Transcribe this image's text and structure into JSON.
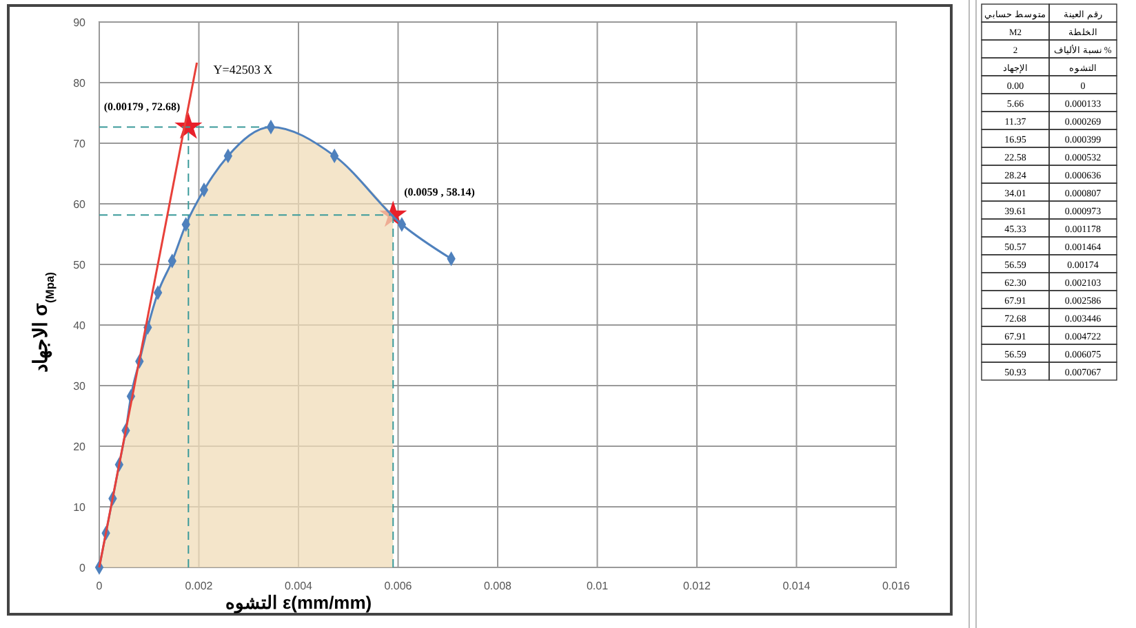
{
  "chart_data": {
    "type": "line",
    "xlabel": "التشوه ε(mm/mm)",
    "ylabel": "الاجهاد σ$_{(Mpa)}$",
    "xlim": [
      0,
      0.016
    ],
    "xticks": [
      0,
      0.002,
      0.004,
      0.006,
      0.008,
      0.01,
      0.012,
      0.014,
      0.016
    ],
    "ylim": [
      0,
      90
    ],
    "yticks": [
      0,
      10,
      20,
      30,
      40,
      50,
      60,
      70,
      80,
      90
    ],
    "grid": true,
    "legend": false,
    "annotations": [
      "رقم العينة",
      "متوسط حسابي",
      "الخلطة",
      "M2",
      "نسبة الألياف %",
      "2",
      "التشوه",
      "الإجهاد",
      "0",
      "0.00",
      "0.000133",
      "5.66",
      "0.000269",
      "11.37",
      "0.000399",
      "16.95",
      "0.000532",
      "22.58",
      "0.000636",
      "28.24",
      "0.000807",
      "34.01",
      "0.000973",
      "39.61",
      "0.001178",
      "45.33",
      "0.001464",
      "50.57",
      "0.00174",
      "56.59",
      "0.002103",
      "62.30",
      "0.002586",
      "67.91",
      "0.003446",
      "72.68",
      "0.004722",
      "67.91",
      "0.006075",
      "56.59",
      "0.007067",
      "50.93"
    ],
    "series": [
      {
        "type": "area",
        "color": "#f0dcb8",
        "x": [
          0,
          0.000133,
          0.000269,
          0.000399,
          0.000532,
          0.000636,
          0.000807,
          0.000973,
          0.001178,
          0.001464,
          0.00174,
          0.002103,
          0.002586,
          0.003446,
          0.004722,
          0.0059
        ],
        "values": [
          0,
          5.66,
          11.37,
          16.95,
          22.58,
          28.24,
          34.01,
          39.61,
          45.33,
          50.57,
          56.59,
          62.3,
          67.91,
          72.68,
          67.91,
          58.14
        ],
        "marker": "none"
      },
      {
        "type": "line",
        "color": "#3a9a9a",
        "marker": "none",
        "line_style": "dashed",
        "x": [
          0,
          0.0034
        ],
        "values": [
          72.68,
          72.68
        ]
      },
      {
        "type": "line",
        "color": "#3a9a9a",
        "marker": "none",
        "line_style": "dashed",
        "x": [
          0.00179,
          0.00179
        ],
        "values": [
          0,
          72.68
        ]
      },
      {
        "type": "line",
        "color": "#3a9a9a",
        "marker": "none",
        "line_style": "dashed",
        "x": [
          0,
          0.0059
        ],
        "values": [
          58.14,
          58.14
        ]
      },
      {
        "type": "line",
        "color": "#3a9a9a",
        "marker": "none",
        "line_style": "dashed",
        "x": [
          0.0059,
          0.0059
        ],
        "values": [
          0,
          58.14
        ]
      },
      {
        "color": "#4f81bd",
        "marker": "diamond",
        "x": [
          0,
          0.000133,
          0.000269,
          0.000399,
          0.000532,
          0.000636,
          0.000807,
          0.000973,
          0.001178,
          0.001464,
          0.00174,
          0.002103,
          0.002586,
          0.003446,
          0.004722,
          0.006075,
          0.007067
        ],
        "values": [
          0,
          5.66,
          11.37,
          16.95,
          22.58,
          28.24,
          34.01,
          39.61,
          45.33,
          50.57,
          56.59,
          62.3,
          67.91,
          72.68,
          67.91,
          56.59,
          50.93
        ]
      },
      {
        "type": "line",
        "name": "Y=42503 X",
        "color": "#e8403a",
        "marker": "none",
        "line_style": "solid",
        "x": [
          0,
          0.00196
        ],
        "values": [
          0,
          83.3
        ]
      },
      {
        "type": "scatter",
        "color": "#e8202a",
        "marker": "star",
        "x": [
          0.00179,
          0.0059
        ],
        "values": [
          72.68,
          58.14
        ],
        "value_labels": [
          "(0.00179 , 72.68)",
          "(0.0059 , 58.14)"
        ]
      }
    ]
  }
}
